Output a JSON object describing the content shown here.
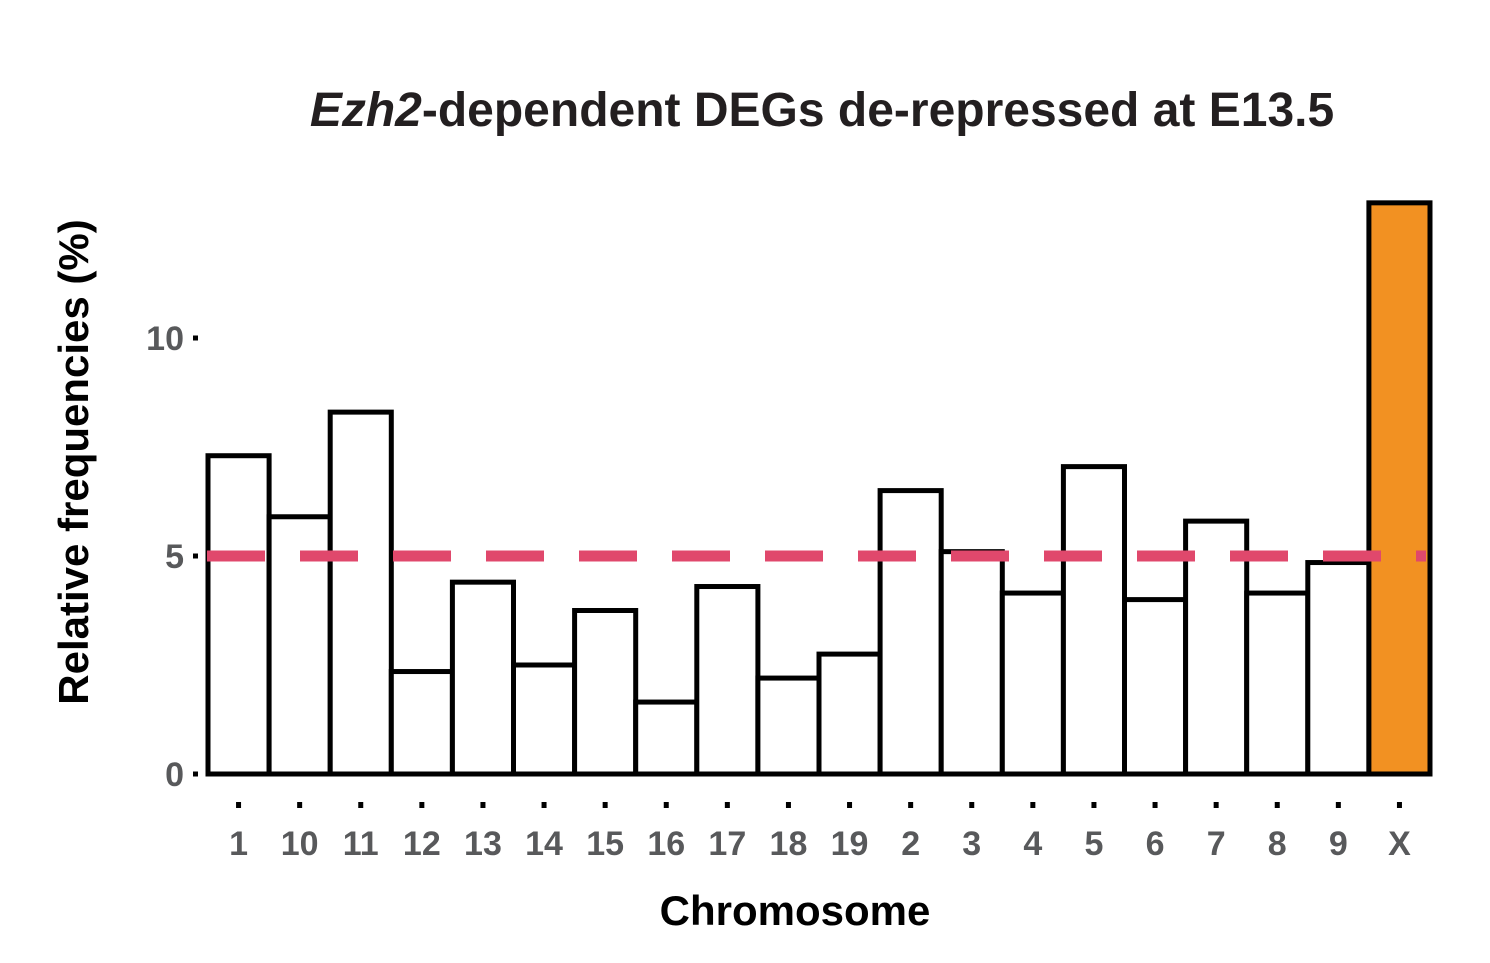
{
  "chart_data": {
    "type": "bar",
    "title_italic": "Ezh2",
    "title_rest": "-dependent DEGs de-repressed at E13.5",
    "xlabel": "Chromosome",
    "ylabel": "Relative frequencies (%)",
    "categories": [
      "1",
      "10",
      "11",
      "12",
      "13",
      "14",
      "15",
      "16",
      "17",
      "18",
      "19",
      "2",
      "3",
      "4",
      "5",
      "6",
      "7",
      "8",
      "9",
      "X"
    ],
    "values": [
      7.3,
      5.9,
      8.3,
      2.35,
      4.4,
      2.5,
      3.75,
      1.65,
      4.3,
      2.2,
      2.75,
      6.5,
      5.1,
      4.15,
      7.05,
      4.0,
      5.8,
      4.15,
      4.85,
      13.1
    ],
    "yticks": [
      0,
      5,
      10
    ],
    "ylim": [
      0,
      13.1
    ],
    "reference_line": {
      "value": 5,
      "style": "dashed"
    },
    "grid": false,
    "colors": {
      "bar_fill": "#ffffff",
      "highlight_fill": "#f29122",
      "bar_stroke": "#000000",
      "reference_line": "#e0486c",
      "tick_text": "#58595b",
      "title_text": "#231f20"
    },
    "highlight_category": "X"
  }
}
